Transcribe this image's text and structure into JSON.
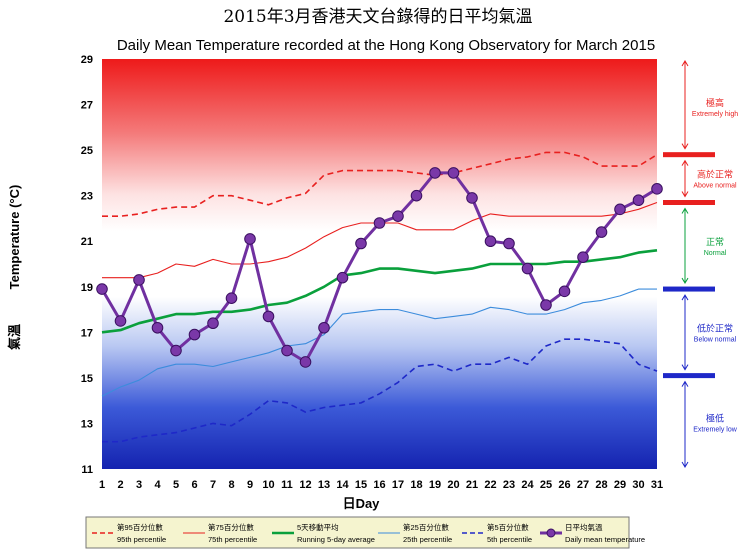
{
  "chart_data": {
    "type": "line",
    "title_zh": "2015年3月香港天文台錄得的日平均氣溫",
    "title": "Daily Mean Temperature recorded at the Hong Kong Observatory for March 2015",
    "xlabel": "日Day",
    "ylabel_zh": "氣溫",
    "ylabel": "Temperature (°C)",
    "x": [
      1,
      2,
      3,
      4,
      5,
      6,
      7,
      8,
      9,
      10,
      11,
      12,
      13,
      14,
      15,
      16,
      17,
      18,
      19,
      20,
      21,
      22,
      23,
      24,
      25,
      26,
      27,
      28,
      29,
      30,
      31
    ],
    "ylim": [
      11,
      29
    ],
    "yticks": [
      11,
      13,
      15,
      17,
      19,
      21,
      23,
      25,
      27,
      29
    ],
    "series": [
      {
        "name_zh": "第95百分位數",
        "name": "95th percentile",
        "style": "dashed",
        "color": "#e8201f",
        "values": [
          22.1,
          22.1,
          22.2,
          22.4,
          22.5,
          22.5,
          23.0,
          23.0,
          22.8,
          22.6,
          22.9,
          23.1,
          23.9,
          24.1,
          24.1,
          24.1,
          24.1,
          24.0,
          23.9,
          24.0,
          24.2,
          24.4,
          24.6,
          24.7,
          24.9,
          24.9,
          24.7,
          24.3,
          24.3,
          24.3,
          24.8
        ]
      },
      {
        "name_zh": "第75百分位數",
        "name": "75th percentile",
        "style": "solid-thin",
        "color": "#e8201f",
        "values": [
          19.4,
          19.4,
          19.4,
          19.6,
          20.0,
          19.9,
          20.2,
          20.0,
          20.0,
          20.1,
          20.3,
          20.7,
          21.2,
          21.6,
          21.8,
          21.8,
          21.8,
          21.5,
          21.5,
          21.5,
          21.9,
          22.2,
          22.1,
          22.1,
          22.1,
          22.1,
          22.1,
          22.1,
          22.2,
          22.4,
          22.7
        ]
      },
      {
        "name_zh": "5天移動平均",
        "name": "Running 5-day average",
        "style": "solid-thick",
        "color": "#0aa03c",
        "values": [
          17.0,
          17.1,
          17.4,
          17.6,
          17.8,
          17.8,
          17.9,
          17.9,
          18.0,
          18.2,
          18.3,
          18.6,
          19.0,
          19.5,
          19.6,
          19.8,
          19.8,
          19.7,
          19.6,
          19.7,
          19.8,
          20.0,
          20.0,
          20.0,
          20.0,
          20.1,
          20.1,
          20.2,
          20.3,
          20.5,
          20.6
        ]
      },
      {
        "name_zh": "第25百分位數",
        "name": "25th percentile",
        "style": "solid-thin",
        "color": "#3c8cdc",
        "values": [
          14.2,
          14.6,
          14.9,
          15.4,
          15.6,
          15.6,
          15.5,
          15.7,
          15.9,
          16.1,
          16.4,
          16.5,
          16.9,
          17.8,
          17.9,
          18.0,
          18.0,
          17.8,
          17.6,
          17.7,
          17.8,
          18.1,
          18.0,
          17.8,
          17.8,
          18.0,
          18.3,
          18.4,
          18.6,
          18.9,
          18.9
        ]
      },
      {
        "name_zh": "第5百分位數",
        "name": "5th percentile",
        "style": "dashed",
        "color": "#1e28c8",
        "values": [
          12.2,
          12.2,
          12.4,
          12.5,
          12.6,
          12.8,
          13.0,
          12.9,
          13.4,
          14.0,
          13.9,
          13.5,
          13.7,
          13.8,
          13.9,
          14.3,
          14.8,
          15.5,
          15.6,
          15.3,
          15.6,
          15.6,
          15.9,
          15.6,
          16.4,
          16.7,
          16.7,
          16.6,
          16.5,
          15.6,
          15.3
        ]
      },
      {
        "name_zh": "日平均氣溫",
        "name": "Daily mean temperature",
        "style": "markers",
        "color": "#7030a0",
        "values": [
          18.9,
          17.5,
          19.3,
          17.2,
          16.2,
          16.9,
          17.4,
          18.5,
          21.1,
          17.7,
          16.2,
          15.7,
          17.2,
          19.4,
          20.9,
          21.8,
          22.1,
          23.0,
          24.0,
          24.0,
          22.9,
          21.0,
          20.9,
          19.8,
          18.2,
          18.8,
          20.3,
          21.4,
          22.4,
          22.8,
          23.3
        ]
      }
    ],
    "categories": [
      {
        "zh": "極高",
        "en": "Extremely high",
        "color": "#e8201f",
        "range": [
          24.8,
          29
        ]
      },
      {
        "zh": "高於正常",
        "en": "Above normal",
        "color": "#e8201f",
        "range": [
          22.7,
          24.8
        ]
      },
      {
        "zh": "正常",
        "en": "Normal",
        "color": "#0aa03c",
        "range": [
          18.9,
          22.7
        ]
      },
      {
        "zh": "低於正常",
        "en": "Below normal",
        "color": "#1e28c8",
        "range": [
          15.1,
          18.9
        ]
      },
      {
        "zh": "極低",
        "en": "Extremely low",
        "color": "#1e28c8",
        "range": [
          11,
          15.1
        ]
      }
    ],
    "legend": "bottom",
    "grid": false
  }
}
